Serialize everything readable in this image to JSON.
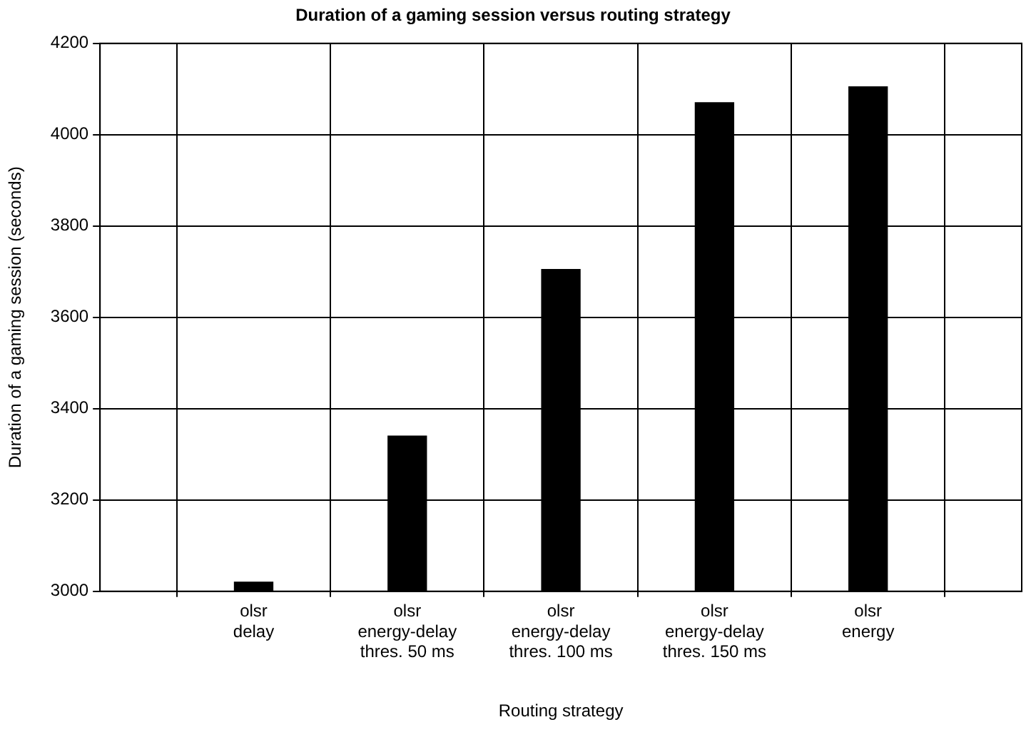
{
  "chart_data": {
    "type": "bar",
    "title": "Duration of a gaming session versus routing strategy",
    "xlabel": "Routing strategy",
    "ylabel": "Duration of a gaming session (seconds)",
    "categories": [
      "olsr\ndelay",
      "olsr\nenergy-delay\nthres. 50 ms",
      "olsr\nenergy-delay\nthres. 100 ms",
      "olsr\nenergy-delay\nthres. 150 ms",
      "olsr\nenergy"
    ],
    "values": [
      3020,
      3340,
      3705,
      4070,
      4105
    ],
    "color": "#000000",
    "ylim": [
      3000,
      4200
    ],
    "yticks": [
      3000,
      3200,
      3400,
      3600,
      3800,
      4000,
      4200
    ],
    "grid": true,
    "legend": false
  }
}
